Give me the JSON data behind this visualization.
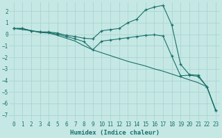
{
  "xlabel": "Humidex (Indice chaleur)",
  "bg_color": "#c5e8e5",
  "grid_color": "#aad4d0",
  "line_color": "#1a7068",
  "xlim": [
    -0.5,
    23.5
  ],
  "ylim": [
    -7.5,
    2.8
  ],
  "yticks": [
    -7,
    -6,
    -5,
    -4,
    -3,
    -2,
    -1,
    0,
    1,
    2
  ],
  "xticks": [
    0,
    1,
    2,
    3,
    4,
    5,
    6,
    7,
    8,
    9,
    10,
    11,
    12,
    13,
    14,
    15,
    16,
    17,
    18,
    19,
    20,
    21,
    22,
    23
  ],
  "line1_x": [
    0,
    1,
    2,
    3,
    4,
    5,
    6,
    7,
    8,
    9,
    10,
    11,
    12,
    13,
    14,
    15,
    16,
    17,
    18,
    19,
    20,
    21,
    22,
    23
  ],
  "line1_y": [
    0.5,
    0.5,
    0.3,
    0.2,
    0.2,
    0.1,
    -0.1,
    -0.2,
    -0.35,
    -0.4,
    0.3,
    0.4,
    0.5,
    1.0,
    1.3,
    2.1,
    2.35,
    2.5,
    0.8,
    -2.6,
    -3.5,
    -3.55,
    -4.55,
    -6.6
  ],
  "line2_x": [
    0,
    1,
    2,
    3,
    4,
    5,
    6,
    7,
    8,
    9,
    10,
    11,
    12,
    13,
    14,
    15,
    16,
    17,
    18,
    19,
    20,
    21,
    22,
    23
  ],
  "line2_y": [
    0.5,
    0.5,
    0.3,
    0.2,
    0.15,
    0.0,
    -0.2,
    -0.4,
    -0.65,
    -1.35,
    -0.6,
    -0.5,
    -0.4,
    -0.3,
    -0.2,
    -0.1,
    -0.05,
    -0.15,
    -1.9,
    -3.6,
    -3.55,
    -3.65,
    -4.55,
    -6.6
  ],
  "line3_x": [
    0,
    1,
    2,
    3,
    4,
    5,
    6,
    7,
    8,
    9,
    10,
    11,
    12,
    13,
    14,
    15,
    16,
    17,
    18,
    19,
    20,
    21,
    22,
    23
  ],
  "line3_y": [
    0.5,
    0.4,
    0.3,
    0.15,
    0.1,
    -0.1,
    -0.35,
    -0.6,
    -1.0,
    -1.35,
    -1.6,
    -1.85,
    -2.1,
    -2.35,
    -2.55,
    -2.75,
    -3.0,
    -3.2,
    -3.45,
    -3.7,
    -3.95,
    -4.2,
    -4.55,
    -6.6
  ]
}
